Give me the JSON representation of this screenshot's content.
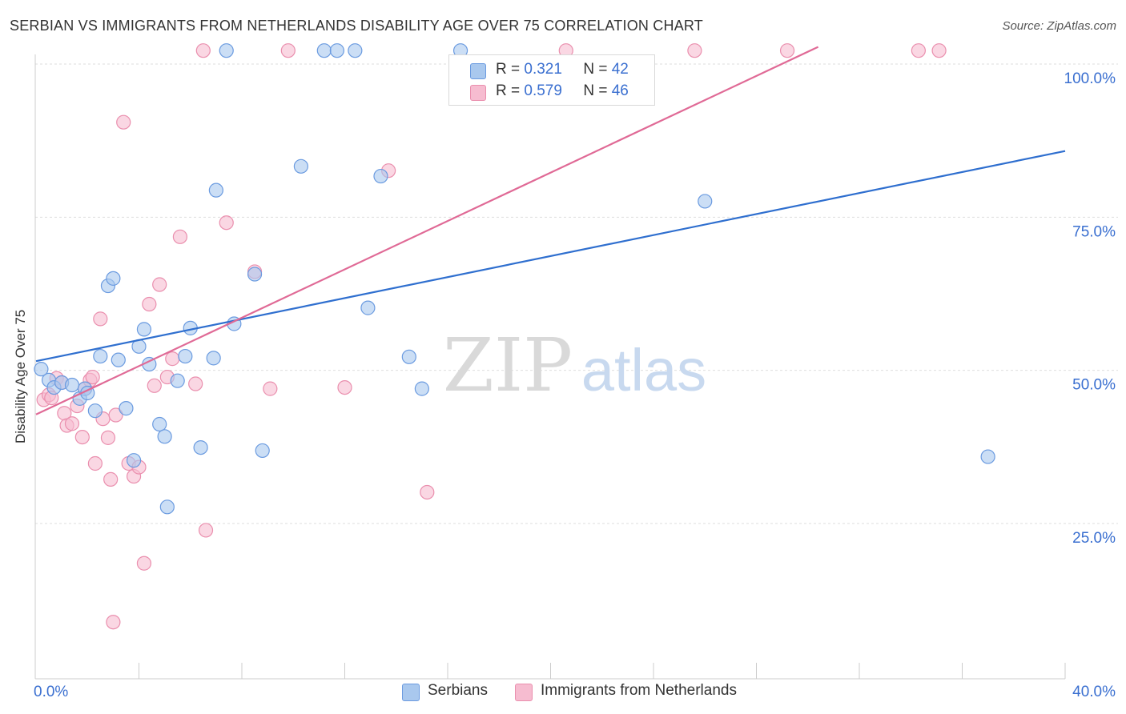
{
  "title": "SERBIAN VS IMMIGRANTS FROM NETHERLANDS DISABILITY AGE OVER 75 CORRELATION CHART",
  "source": "Source: ZipAtlas.com",
  "watermark": {
    "zip": "ZIP",
    "atlas": "atlas"
  },
  "legend": {
    "r_label": "R =",
    "n_label": "N =",
    "series": [
      {
        "r": "0.321",
        "n": "42"
      },
      {
        "r": "0.579",
        "n": "46"
      }
    ]
  },
  "bottom_legend": [
    "Serbians",
    "Immigrants from Netherlands"
  ],
  "colors": {
    "blue_fill": "#a9c8ee",
    "blue_stroke": "#6b9be0",
    "blue_line": "#2f6fcf",
    "pink_fill": "#f6bcd0",
    "pink_stroke": "#ea8fae",
    "pink_line": "#e06a96",
    "tick_label": "#3a6fd0",
    "grid": "#dddddd"
  },
  "chart_data": {
    "type": "scatter",
    "title": "SERBIAN VS IMMIGRANTS FROM NETHERLANDS DISABILITY AGE OVER 75 CORRELATION CHART",
    "xlabel": "",
    "ylabel": "Disability Age Over 75",
    "xlim": [
      0,
      40
    ],
    "ylim": [
      0,
      104
    ],
    "x_tick_labels": [
      "0.0%",
      "40.0%"
    ],
    "y_ticks": [
      25,
      50,
      75,
      100
    ],
    "y_tick_labels": [
      "25.0%",
      "50.0%",
      "75.0%",
      "100.0%"
    ],
    "grid": true,
    "legend_position": "top-center",
    "series": [
      {
        "name": "Serbians",
        "r": 0.321,
        "n": 42,
        "trend": {
          "x": [
            0,
            40
          ],
          "y": [
            51.5,
            85.8
          ]
        },
        "points": [
          [
            0.2,
            50.2
          ],
          [
            0.5,
            48.4
          ],
          [
            0.7,
            47.2
          ],
          [
            1.0,
            48.0
          ],
          [
            1.4,
            47.6
          ],
          [
            1.7,
            45.4
          ],
          [
            1.9,
            47.0
          ],
          [
            2.0,
            46.3
          ],
          [
            2.3,
            43.4
          ],
          [
            2.5,
            52.3
          ],
          [
            2.8,
            63.8
          ],
          [
            3.0,
            65.0
          ],
          [
            3.2,
            51.7
          ],
          [
            3.5,
            43.8
          ],
          [
            3.8,
            35.3
          ],
          [
            4.0,
            53.9
          ],
          [
            4.2,
            56.7
          ],
          [
            4.4,
            51.0
          ],
          [
            4.8,
            41.2
          ],
          [
            5.0,
            39.2
          ],
          [
            5.1,
            27.7
          ],
          [
            5.5,
            48.3
          ],
          [
            5.8,
            52.3
          ],
          [
            6.0,
            56.9
          ],
          [
            6.4,
            37.4
          ],
          [
            6.9,
            52.0
          ],
          [
            7.0,
            79.4
          ],
          [
            7.4,
            102.2
          ],
          [
            7.7,
            57.6
          ],
          [
            8.5,
            65.7
          ],
          [
            8.8,
            36.9
          ],
          [
            10.3,
            83.3
          ],
          [
            11.2,
            102.2
          ],
          [
            11.7,
            102.2
          ],
          [
            12.4,
            102.2
          ],
          [
            12.9,
            60.2
          ],
          [
            13.4,
            81.7
          ],
          [
            14.5,
            52.2
          ],
          [
            15.0,
            47.0
          ],
          [
            16.5,
            102.2
          ],
          [
            26.0,
            77.6
          ],
          [
            37.0,
            35.9
          ]
        ]
      },
      {
        "name": "Immigrants from Netherlands",
        "r": 0.579,
        "n": 46,
        "trend": {
          "x": [
            0,
            30.4
          ],
          "y": [
            42.8,
            102.8
          ]
        },
        "points": [
          [
            0.3,
            45.2
          ],
          [
            0.5,
            46.0
          ],
          [
            0.6,
            45.5
          ],
          [
            0.8,
            48.7
          ],
          [
            1.0,
            48.0
          ],
          [
            1.1,
            43.0
          ],
          [
            1.2,
            41.0
          ],
          [
            1.4,
            41.3
          ],
          [
            1.6,
            44.2
          ],
          [
            1.8,
            39.1
          ],
          [
            1.9,
            47.0
          ],
          [
            2.1,
            48.4
          ],
          [
            2.2,
            48.9
          ],
          [
            2.3,
            34.8
          ],
          [
            2.5,
            58.4
          ],
          [
            2.6,
            42.1
          ],
          [
            2.8,
            39.0
          ],
          [
            2.9,
            32.2
          ],
          [
            3.0,
            8.9
          ],
          [
            3.1,
            42.7
          ],
          [
            3.4,
            90.5
          ],
          [
            3.6,
            34.8
          ],
          [
            3.8,
            32.7
          ],
          [
            4.0,
            34.2
          ],
          [
            4.2,
            18.5
          ],
          [
            4.4,
            60.8
          ],
          [
            4.6,
            47.5
          ],
          [
            4.8,
            64.0
          ],
          [
            5.1,
            48.9
          ],
          [
            5.3,
            51.9
          ],
          [
            5.6,
            71.8
          ],
          [
            6.2,
            47.8
          ],
          [
            6.5,
            102.2
          ],
          [
            6.6,
            23.9
          ],
          [
            7.4,
            74.1
          ],
          [
            8.5,
            66.1
          ],
          [
            9.1,
            47.0
          ],
          [
            9.8,
            102.2
          ],
          [
            12.0,
            47.2
          ],
          [
            13.7,
            82.6
          ],
          [
            15.2,
            30.1
          ],
          [
            20.6,
            102.2
          ],
          [
            25.6,
            102.2
          ],
          [
            29.2,
            102.2
          ],
          [
            34.3,
            102.2
          ],
          [
            35.1,
            102.2
          ]
        ]
      }
    ]
  }
}
